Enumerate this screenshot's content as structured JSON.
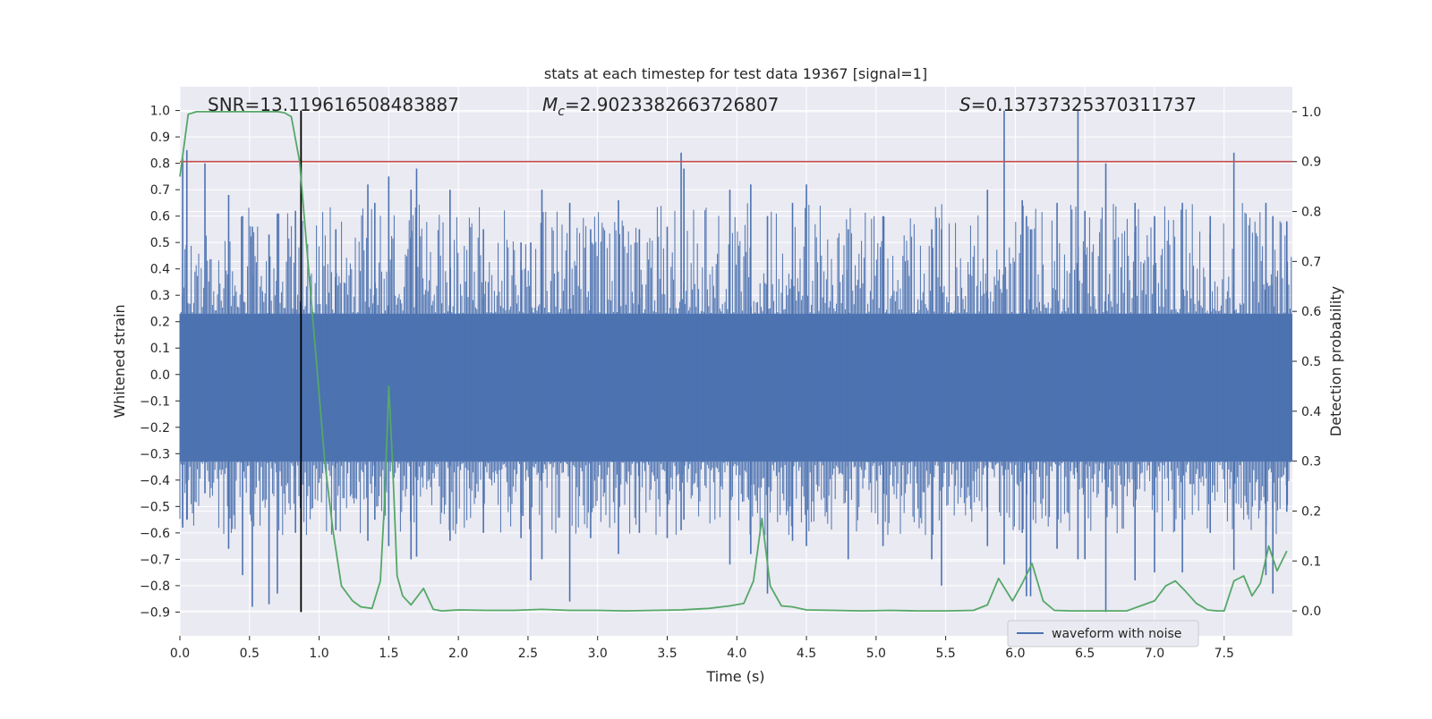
{
  "chart_data": {
    "type": "line",
    "title": "stats at each timestep for test data 19367 [signal=1]",
    "xlabel": "Time (s)",
    "ylabel_left": "Whitened strain",
    "ylabel_right": "Detection probability",
    "xlim": [
      0,
      7.99
    ],
    "ylim_left": [
      -0.99,
      1.09
    ],
    "ylim_right": [
      -0.05,
      1.05
    ],
    "x_ticks": [
      0.0,
      0.5,
      1.0,
      1.5,
      2.0,
      2.5,
      3.0,
      3.5,
      4.0,
      4.5,
      5.0,
      5.5,
      6.0,
      6.5,
      7.0,
      7.5
    ],
    "x_tick_labels": [
      "0.0",
      "0.5",
      "1.0",
      "1.5",
      "2.0",
      "2.5",
      "3.0",
      "3.5",
      "4.0",
      "4.5",
      "5.0",
      "5.5",
      "6.0",
      "6.5",
      "7.0",
      "7.5"
    ],
    "y_left_ticks": [
      1.0,
      0.9,
      0.8,
      0.7,
      0.6,
      0.5,
      0.4,
      0.3,
      0.2,
      0.1,
      0.0,
      -0.1,
      -0.2,
      -0.3,
      -0.4,
      -0.5,
      -0.6,
      -0.7,
      -0.8,
      -0.9
    ],
    "y_left_tick_labels": [
      "1.0",
      "0.9",
      "0.8",
      "0.7",
      "0.6",
      "0.5",
      "0.4",
      "0.3",
      "0.2",
      "0.1",
      "0.0",
      "−0.1",
      "−0.2",
      "−0.3",
      "−0.4",
      "−0.5",
      "−0.6",
      "−0.7",
      "−0.8",
      "−0.9"
    ],
    "y_right_ticks": [
      1.0,
      0.9,
      0.8,
      0.7,
      0.6,
      0.5,
      0.4,
      0.3,
      0.2,
      0.1,
      0.0
    ],
    "y_right_tick_labels": [
      "1.0",
      "0.9",
      "0.8",
      "0.7",
      "0.6",
      "0.5",
      "0.4",
      "0.3",
      "0.2",
      "0.1",
      "0.0"
    ],
    "annotations": {
      "snr": "SNR=13.119616508483887",
      "mc_symbol": "M",
      "mc_subscript": "c",
      "mc_value": "=2.9023382663726807",
      "s_symbol": "S",
      "s_value": "=0.13737325370311737"
    },
    "threshold": {
      "y_right": 0.9,
      "color": "#c44e52"
    },
    "merger_marker": {
      "x": 0.87,
      "y_left_range": [
        -0.9,
        1.0
      ],
      "color": "#000000"
    },
    "legend": {
      "label": "waveform with noise",
      "placement": "lower-right"
    },
    "colors": {
      "background": "#eaeaf2",
      "grid": "#ffffff",
      "waveform": "#4c72b0",
      "probability": "#55a868"
    },
    "series": [
      {
        "name": "waveform with noise",
        "axis": "left",
        "style": "noise-band",
        "dense_band": [
          -0.33,
          0.23
        ],
        "spikes": [
          [
            0.02,
            0.82,
            -0.58
          ],
          [
            0.05,
            0.85,
            -0.55
          ],
          [
            0.18,
            0.8,
            -0.45
          ],
          [
            0.35,
            0.68,
            -0.66
          ],
          [
            0.45,
            0.6,
            -0.76
          ],
          [
            0.52,
            0.56,
            -0.88
          ],
          [
            0.64,
            0.53,
            -0.87
          ],
          [
            0.7,
            0.61,
            -0.83
          ],
          [
            0.83,
            0.62,
            -0.6
          ],
          [
            1.12,
            0.55,
            -0.59
          ],
          [
            1.35,
            0.72,
            -0.63
          ],
          [
            1.4,
            0.65,
            -0.55
          ],
          [
            1.5,
            0.75,
            -0.65
          ],
          [
            1.66,
            0.7,
            -0.7
          ],
          [
            1.7,
            0.78,
            -0.69
          ],
          [
            1.94,
            0.7,
            -0.63
          ],
          [
            2.18,
            0.55,
            -0.6
          ],
          [
            2.45,
            0.5,
            -0.62
          ],
          [
            2.52,
            0.5,
            -0.78
          ],
          [
            2.6,
            0.7,
            -0.7
          ],
          [
            2.8,
            0.65,
            -0.86
          ],
          [
            2.95,
            0.55,
            -0.62
          ],
          [
            3.15,
            0.66,
            -0.68
          ],
          [
            3.3,
            0.55,
            -0.6
          ],
          [
            3.5,
            0.56,
            -0.62
          ],
          [
            3.6,
            0.84,
            -0.59
          ],
          [
            3.62,
            0.78,
            -0.55
          ],
          [
            3.95,
            0.7,
            -0.72
          ],
          [
            4.1,
            0.72,
            -0.68
          ],
          [
            4.22,
            0.6,
            -0.83
          ],
          [
            4.4,
            0.65,
            -0.63
          ],
          [
            4.5,
            0.72,
            -0.65
          ],
          [
            4.8,
            0.55,
            -0.7
          ],
          [
            5.05,
            0.6,
            -0.65
          ],
          [
            5.4,
            0.55,
            -0.7
          ],
          [
            5.47,
            0.55,
            -0.8
          ],
          [
            5.8,
            0.7,
            -0.65
          ],
          [
            5.92,
            1.0,
            -0.72
          ],
          [
            6.05,
            0.66,
            -0.6
          ],
          [
            6.08,
            0.6,
            -0.84
          ],
          [
            6.11,
            0.55,
            -0.84
          ],
          [
            6.3,
            0.65,
            -0.66
          ],
          [
            6.45,
            1.0,
            -0.7
          ],
          [
            6.5,
            0.62,
            -0.7
          ],
          [
            6.65,
            0.8,
            -0.9
          ],
          [
            6.86,
            0.65,
            -0.78
          ],
          [
            7.0,
            0.6,
            -0.75
          ],
          [
            7.2,
            0.65,
            -0.75
          ],
          [
            7.4,
            0.6,
            -0.6
          ],
          [
            7.57,
            0.84,
            -0.74
          ],
          [
            7.8,
            0.65,
            -0.76
          ],
          [
            7.85,
            0.6,
            -0.83
          ],
          [
            7.95,
            0.58,
            -0.52
          ]
        ]
      },
      {
        "name": "detection probability",
        "axis": "right",
        "x": [
          0.0,
          0.06,
          0.12,
          0.25,
          0.4,
          0.55,
          0.7,
          0.75,
          0.8,
          0.86,
          0.92,
          0.98,
          1.04,
          1.1,
          1.16,
          1.24,
          1.3,
          1.38,
          1.44,
          1.47,
          1.5,
          1.53,
          1.56,
          1.6,
          1.66,
          1.75,
          1.82,
          1.88,
          2.0,
          2.2,
          2.4,
          2.6,
          2.8,
          3.0,
          3.2,
          3.4,
          3.6,
          3.8,
          3.95,
          4.05,
          4.12,
          4.18,
          4.24,
          4.32,
          4.4,
          4.5,
          4.7,
          4.9,
          5.1,
          5.3,
          5.5,
          5.7,
          5.8,
          5.88,
          5.98,
          6.05,
          6.12,
          6.2,
          6.28,
          6.4,
          6.6,
          6.8,
          6.9,
          7.0,
          7.08,
          7.15,
          7.22,
          7.3,
          7.38,
          7.45,
          7.5,
          7.57,
          7.64,
          7.7,
          7.76,
          7.82,
          7.88,
          7.95
        ],
        "y": [
          0.87,
          0.995,
          1.0,
          1.0,
          1.0,
          1.0,
          1.0,
          0.998,
          0.99,
          0.9,
          0.7,
          0.5,
          0.3,
          0.16,
          0.05,
          0.02,
          0.008,
          0.005,
          0.06,
          0.22,
          0.45,
          0.28,
          0.07,
          0.03,
          0.012,
          0.045,
          0.003,
          0.0,
          0.002,
          0.001,
          0.001,
          0.003,
          0.001,
          0.001,
          0.0,
          0.001,
          0.002,
          0.005,
          0.01,
          0.015,
          0.06,
          0.185,
          0.05,
          0.01,
          0.008,
          0.002,
          0.001,
          0.0,
          0.001,
          0.0,
          0.0,
          0.001,
          0.012,
          0.065,
          0.02,
          0.055,
          0.095,
          0.02,
          0.001,
          0.0,
          0.0,
          0.0,
          0.01,
          0.02,
          0.05,
          0.06,
          0.04,
          0.015,
          0.002,
          0.0,
          0.0,
          0.06,
          0.07,
          0.03,
          0.055,
          0.13,
          0.08,
          0.12
        ]
      }
    ]
  }
}
